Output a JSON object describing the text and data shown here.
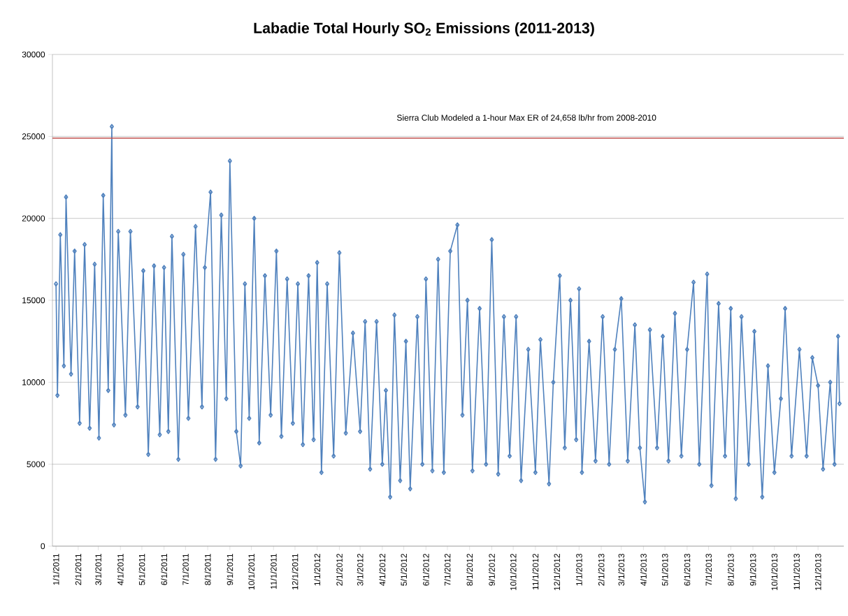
{
  "chart_data": {
    "type": "line",
    "title": "Labadie Total Hourly SO$_{2}$ Emissions (2011-2013)",
    "marker": "diamond",
    "grid": "y",
    "xlim": [
      "2010-12-27",
      "2014-01-06"
    ],
    "ylim": [
      0,
      30000
    ],
    "yticks": [
      0,
      5000,
      10000,
      15000,
      20000,
      25000,
      30000
    ],
    "xticks": [
      {
        "value": "2011-01-01",
        "label": "1/1/2011"
      },
      {
        "value": "2011-02-01",
        "label": "2/1/2011"
      },
      {
        "value": "2011-03-01",
        "label": "3/1/2011"
      },
      {
        "value": "2011-04-01",
        "label": "4/1/2011"
      },
      {
        "value": "2011-05-01",
        "label": "5/1/2011"
      },
      {
        "value": "2011-06-01",
        "label": "6/1/2011"
      },
      {
        "value": "2011-07-01",
        "label": "7/1/2011"
      },
      {
        "value": "2011-08-01",
        "label": "8/1/2011"
      },
      {
        "value": "2011-09-01",
        "label": "9/1/2011"
      },
      {
        "value": "2011-10-01",
        "label": "10/1/2011"
      },
      {
        "value": "2011-11-01",
        "label": "11/1/2011"
      },
      {
        "value": "2011-12-01",
        "label": "12/1/2011"
      },
      {
        "value": "2012-01-01",
        "label": "1/1/2012"
      },
      {
        "value": "2012-02-01",
        "label": "2/1/2012"
      },
      {
        "value": "2012-03-01",
        "label": "3/1/2012"
      },
      {
        "value": "2012-04-01",
        "label": "4/1/2012"
      },
      {
        "value": "2012-05-01",
        "label": "5/1/2012"
      },
      {
        "value": "2012-06-01",
        "label": "6/1/2012"
      },
      {
        "value": "2012-07-01",
        "label": "7/1/2012"
      },
      {
        "value": "2012-08-01",
        "label": "8/1/2012"
      },
      {
        "value": "2012-09-01",
        "label": "9/1/2012"
      },
      {
        "value": "2012-10-01",
        "label": "10/1/2012"
      },
      {
        "value": "2012-11-01",
        "label": "11/1/2012"
      },
      {
        "value": "2012-12-01",
        "label": "12/1/2012"
      },
      {
        "value": "2013-01-01",
        "label": "1/1/2013"
      },
      {
        "value": "2013-02-01",
        "label": "2/1/2013"
      },
      {
        "value": "2013-03-01",
        "label": "3/1/2013"
      },
      {
        "value": "2013-04-01",
        "label": "4/1/2013"
      },
      {
        "value": "2013-05-01",
        "label": "5/1/2013"
      },
      {
        "value": "2013-06-01",
        "label": "6/1/2013"
      },
      {
        "value": "2013-07-01",
        "label": "7/1/2013"
      },
      {
        "value": "2013-08-01",
        "label": "8/1/2013"
      },
      {
        "value": "2013-09-01",
        "label": "9/1/2013"
      },
      {
        "value": "2013-10-01",
        "label": "10/1/2013"
      },
      {
        "value": "2013-11-01",
        "label": "11/1/2013"
      },
      {
        "value": "2013-12-01",
        "label": "12/1/2013"
      }
    ],
    "ref_lines": [
      {
        "axis": "y",
        "value": 24900,
        "label": "Sierra Club Modeled a 1-hour Max ER of 24,658  lb/hr from 2008-2010",
        "color": "#c0504d"
      }
    ],
    "series": [
      {
        "color": "#4f81bd",
        "x": [
          "2011-01-01",
          "2011-01-03",
          "2011-01-07",
          "2011-01-12",
          "2011-01-15",
          "2011-01-22",
          "2011-01-27",
          "2011-02-03",
          "2011-02-10",
          "2011-02-17",
          "2011-02-24",
          "2011-03-02",
          "2011-03-08",
          "2011-03-15",
          "2011-03-20",
          "2011-03-23",
          "2011-03-29",
          "2011-04-08",
          "2011-04-15",
          "2011-04-25",
          "2011-05-03",
          "2011-05-10",
          "2011-05-18",
          "2011-05-26",
          "2011-06-01",
          "2011-06-07",
          "2011-06-12",
          "2011-06-21",
          "2011-06-28",
          "2011-07-05",
          "2011-07-15",
          "2011-07-24",
          "2011-07-28",
          "2011-08-05",
          "2011-08-12",
          "2011-08-20",
          "2011-08-27",
          "2011-09-01",
          "2011-09-10",
          "2011-09-16",
          "2011-09-22",
          "2011-09-28",
          "2011-10-05",
          "2011-10-12",
          "2011-10-20",
          "2011-10-28",
          "2011-11-05",
          "2011-11-12",
          "2011-11-20",
          "2011-11-28",
          "2011-12-05",
          "2011-12-12",
          "2011-12-20",
          "2011-12-27",
          "2012-01-01",
          "2012-01-07",
          "2012-01-15",
          "2012-01-24",
          "2012-02-01",
          "2012-02-10",
          "2012-02-20",
          "2012-03-01",
          "2012-03-08",
          "2012-03-15",
          "2012-03-24",
          "2012-04-01",
          "2012-04-06",
          "2012-04-12",
          "2012-04-18",
          "2012-04-26",
          "2012-05-04",
          "2012-05-10",
          "2012-05-20",
          "2012-05-27",
          "2012-06-01",
          "2012-06-10",
          "2012-06-18",
          "2012-06-26",
          "2012-07-05",
          "2012-07-15",
          "2012-07-22",
          "2012-07-29",
          "2012-08-05",
          "2012-08-15",
          "2012-08-24",
          "2012-09-01",
          "2012-09-10",
          "2012-09-18",
          "2012-09-26",
          "2012-10-05",
          "2012-10-12",
          "2012-10-22",
          "2012-11-01",
          "2012-11-08",
          "2012-11-20",
          "2012-11-26",
          "2012-12-05",
          "2012-12-12",
          "2012-12-20",
          "2012-12-28",
          "2013-01-01",
          "2013-01-05",
          "2013-01-15",
          "2013-01-24",
          "2013-02-03",
          "2013-02-12",
          "2013-02-20",
          "2013-03-01",
          "2013-03-10",
          "2013-03-20",
          "2013-03-27",
          "2013-04-03",
          "2013-04-10",
          "2013-04-20",
          "2013-04-28",
          "2013-05-06",
          "2013-05-15",
          "2013-05-24",
          "2013-06-01",
          "2013-06-10",
          "2013-06-18",
          "2013-06-29",
          "2013-07-05",
          "2013-07-15",
          "2013-07-24",
          "2013-08-01",
          "2013-08-08",
          "2013-08-16",
          "2013-08-26",
          "2013-09-03",
          "2013-09-14",
          "2013-09-22",
          "2013-10-01",
          "2013-10-10",
          "2013-10-16",
          "2013-10-25",
          "2013-11-05",
          "2013-11-15",
          "2013-11-23",
          "2013-12-01",
          "2013-12-08",
          "2013-12-18",
          "2013-12-24",
          "2013-12-29",
          "2013-12-31"
        ],
        "values": [
          16000,
          9200,
          19000,
          11000,
          21300,
          10500,
          18000,
          7500,
          18400,
          7200,
          17200,
          6600,
          21400,
          9500,
          25600,
          7400,
          19200,
          8000,
          19200,
          8500,
          16800,
          5600,
          17100,
          6800,
          17000,
          7000,
          18900,
          5300,
          17800,
          7800,
          19500,
          8500,
          17000,
          21600,
          5300,
          20200,
          9000,
          23500,
          7000,
          4900,
          16000,
          7800,
          20000,
          6300,
          16500,
          8000,
          18000,
          6700,
          16300,
          7500,
          16000,
          6200,
          16500,
          6500,
          17300,
          4500,
          16000,
          5500,
          17900,
          6900,
          13000,
          7000,
          13700,
          4700,
          13700,
          5000,
          9500,
          3000,
          14100,
          4000,
          12500,
          3500,
          14000,
          5000,
          16300,
          4600,
          17500,
          4500,
          18000,
          19600,
          8000,
          15000,
          4600,
          14500,
          5000,
          18700,
          4400,
          14000,
          5500,
          14000,
          4000,
          12000,
          4500,
          12600,
          3800,
          10000,
          16500,
          6000,
          15000,
          6500,
          15700,
          4500,
          12500,
          5200,
          14000,
          5000,
          12000,
          15100,
          5200,
          13500,
          6000,
          2700,
          13200,
          6000,
          12800,
          5200,
          14200,
          5500,
          12000,
          16100,
          5000,
          16600,
          3700,
          14800,
          5500,
          14500,
          2900,
          14000,
          5000,
          13100,
          3000,
          11000,
          4500,
          9000,
          14500,
          5500,
          12000,
          5500,
          11500,
          9800,
          4700,
          10000,
          5000,
          12800,
          8700
        ]
      }
    ]
  }
}
